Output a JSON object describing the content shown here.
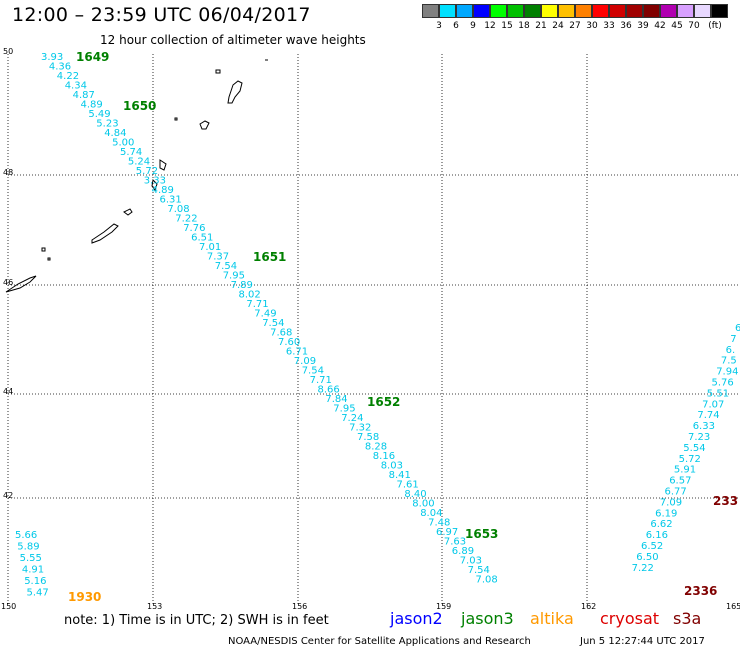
{
  "header": {
    "title": "12:00 – 23:59 UTC 06/04/2017",
    "subtitle": "12 hour collection of altimeter wave heights"
  },
  "colorbar": {
    "colors": [
      "#808080",
      "#00e0ff",
      "#00a8ff",
      "#0000ff",
      "#00ff00",
      "#00c000",
      "#008000",
      "#ffff00",
      "#ffc000",
      "#ff8000",
      "#ff0000",
      "#d00000",
      "#a00000",
      "#800000",
      "#b000b0",
      "#d8a0ff",
      "#e8d8ff",
      "#000000"
    ],
    "labels": [
      "3",
      "6",
      "9",
      "12",
      "15",
      "18",
      "21",
      "24",
      "27",
      "30",
      "33",
      "36",
      "39",
      "42",
      "45",
      "70",
      "(ft)"
    ]
  },
  "map": {
    "lon_ticks": [
      "150",
      "153",
      "156",
      "159",
      "162",
      "165"
    ],
    "lat_ticks": [
      "50",
      "48",
      "46",
      "44",
      "42",
      "40"
    ],
    "lon_range": [
      150,
      165
    ],
    "lat_range": [
      40,
      50
    ]
  },
  "tracks": {
    "cyan_swh_columns": [
      [
        "3.93",
        "4.36",
        "4.22",
        "4.34",
        "4.87",
        "4.89",
        "5.49",
        "5.23",
        "4.84",
        "5.00",
        "5.74",
        "5.24",
        "5.72",
        "3.33",
        "4.89",
        "6.31",
        "7.08",
        "7.22",
        "7.76",
        "6.51",
        "7.01",
        "7.37",
        "7.54",
        "7.95",
        "7.89",
        "8.02",
        "7.71",
        "7.49",
        "7.54",
        "7.68",
        "7.60",
        "6.71",
        "7.09",
        "7.54",
        "7.71",
        "8.66",
        "7.84",
        "7.95",
        "7.24",
        "7.32",
        "7.58",
        "8.28",
        "8.16",
        "8.03",
        "8.41",
        "7.61",
        "8.40",
        "8.00",
        "8.04",
        "7.48",
        "6.97",
        "7.63",
        "6.89",
        "7.03",
        "7.54",
        "7.08"
      ],
      [
        "5.66",
        "5.89",
        "5.55",
        "4.91",
        "5.16",
        "5.47"
      ],
      [
        "6",
        "7",
        "6.",
        "7.5",
        "7.94",
        "5.76",
        "5.51",
        "7.07",
        "7.74",
        "6.33",
        "7.23",
        "5.54",
        "5.72",
        "5.91",
        "6.57",
        "6.77",
        "7.09",
        "6.19",
        "6.62",
        "6.16",
        "6.52",
        "6.50",
        "7.22"
      ]
    ],
    "pass_labels": [
      {
        "text": "1649",
        "color": "#008000"
      },
      {
        "text": "1650",
        "color": "#008000"
      },
      {
        "text": "1651",
        "color": "#008000"
      },
      {
        "text": "1652",
        "color": "#008000"
      },
      {
        "text": "1653",
        "color": "#008000"
      },
      {
        "text": "1930",
        "color": "#ff9900"
      },
      {
        "text": "2336",
        "color": "#800000"
      },
      {
        "text": "233",
        "color": "#800000"
      }
    ],
    "value_color": "#00c8e8"
  },
  "legend": {
    "note": "note: 1) Time is in UTC; 2) SWH is in feet",
    "satellites": [
      {
        "name": "jason2",
        "color": "#0000ff"
      },
      {
        "name": "jason3",
        "color": "#008000"
      },
      {
        "name": "altika",
        "color": "#ff9900"
      },
      {
        "name": "cryosat",
        "color": "#dd0000"
      },
      {
        "name": "s3a",
        "color": "#800000"
      }
    ]
  },
  "footer": {
    "credit": "NOAA/NESDIS Center for Satellite Applications and Research",
    "timestamp": "Jun  5 12:27:44 UTC 2017"
  }
}
